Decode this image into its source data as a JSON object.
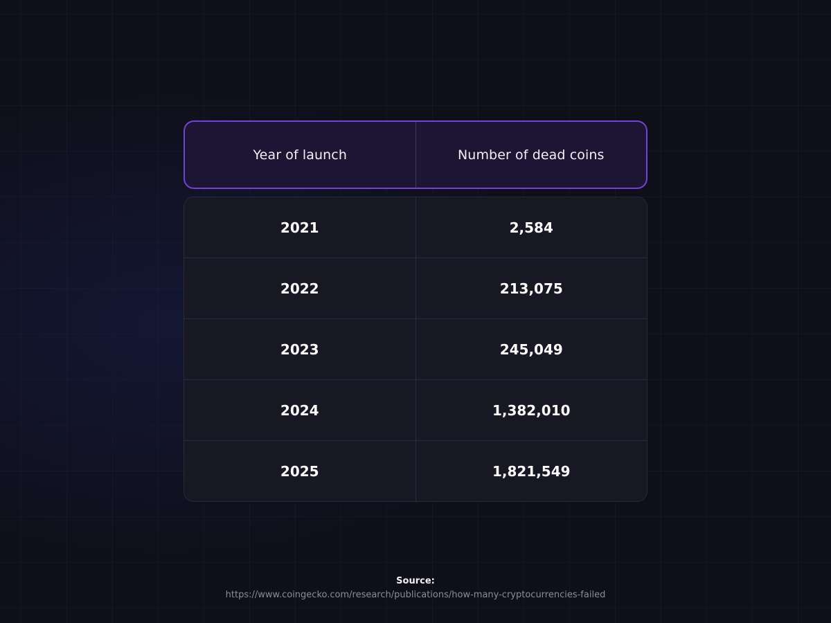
{
  "chart_data": {
    "type": "table",
    "columns": [
      "Year of launch",
      "Number of dead coins"
    ],
    "rows": [
      [
        "2021",
        "2,584"
      ],
      [
        "2022",
        "213,075"
      ],
      [
        "2023",
        "245,049"
      ],
      [
        "2024",
        "1,382,010"
      ],
      [
        "2025",
        "1,821,549"
      ]
    ],
    "colors": {
      "header_border": "#7443d6",
      "header_background": "#1d1534",
      "body_background": "#171823",
      "page_background": "#0f0f1a"
    }
  },
  "source": {
    "label": "Source:",
    "url": "https://www.coingecko.com/research/publications/how-many-cryptocurrencies-failed"
  }
}
